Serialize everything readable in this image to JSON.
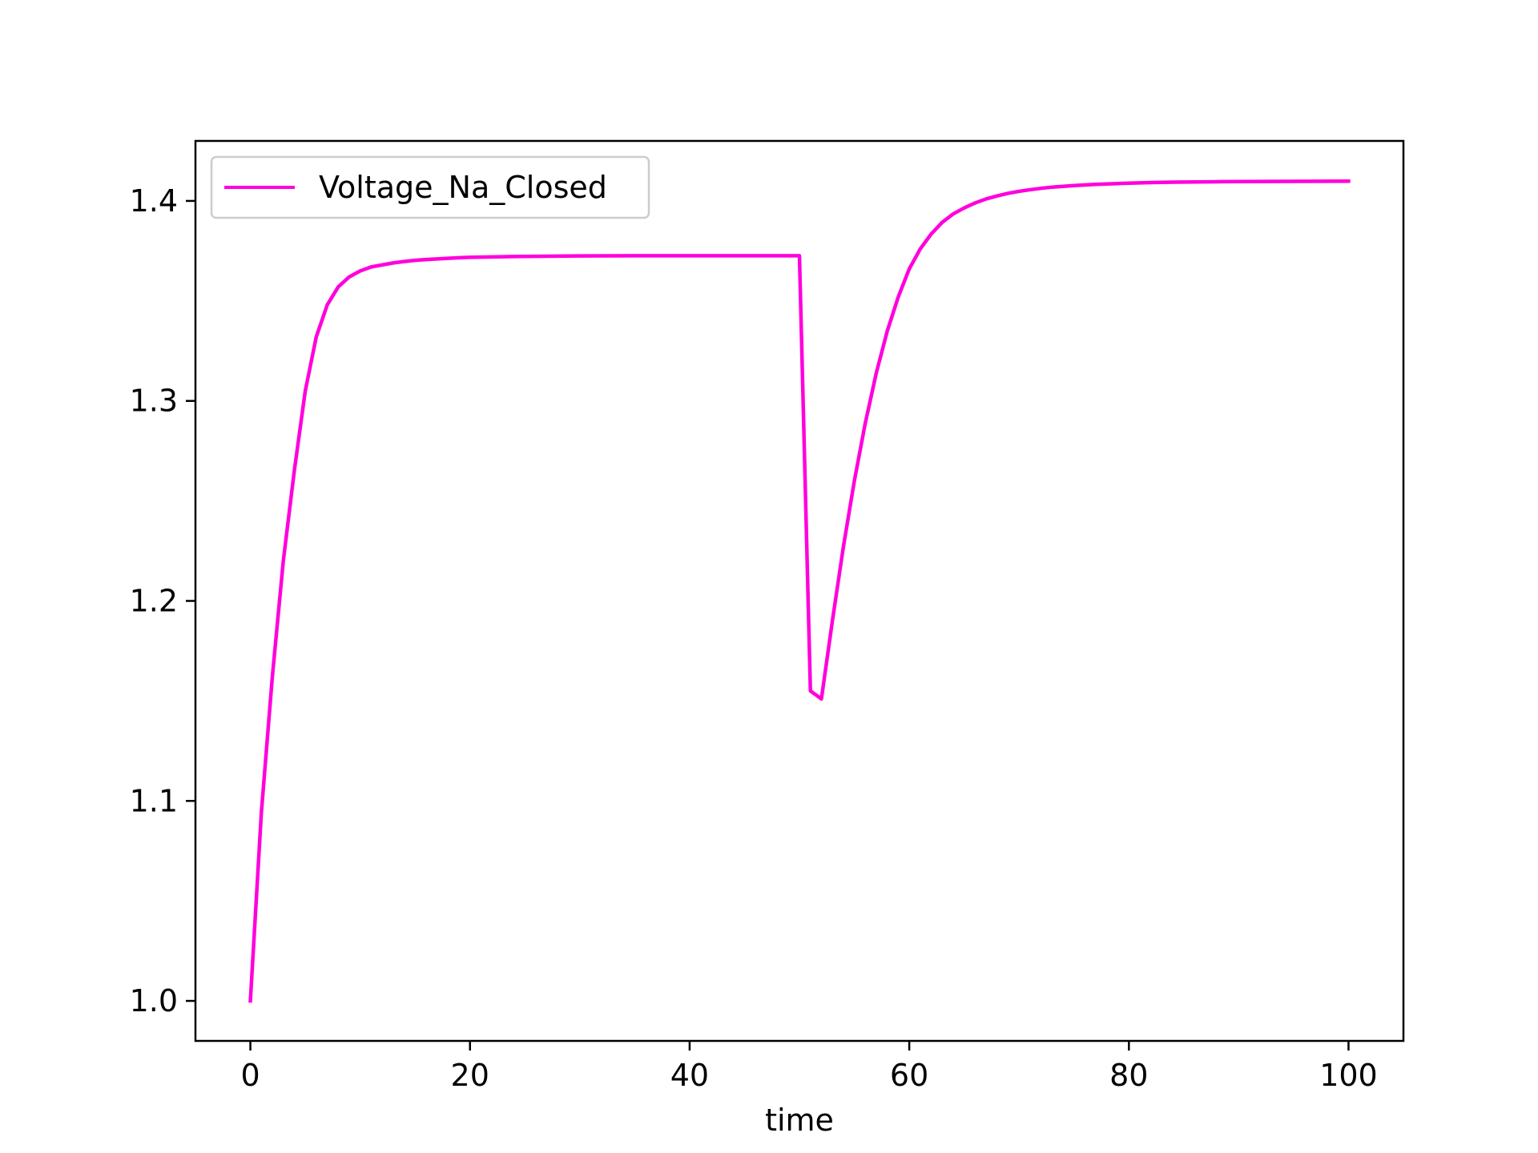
{
  "chart_data": {
    "type": "line",
    "title": "",
    "xlabel": "time",
    "ylabel": "",
    "xlim": [
      -5,
      105
    ],
    "ylim": [
      0.98,
      1.43
    ],
    "xticks": [
      0,
      20,
      40,
      60,
      80,
      100
    ],
    "xtick_labels": [
      "0",
      "20",
      "40",
      "60",
      "80",
      "100"
    ],
    "yticks": [
      1.0,
      1.1,
      1.2,
      1.3,
      1.4
    ],
    "ytick_labels": [
      "1.0",
      "1.1",
      "1.2",
      "1.3",
      "1.4"
    ],
    "grid": false,
    "legend_position": "top-left",
    "series": [
      {
        "name": "Voltage_Na_Closed",
        "color": "#ff00dd",
        "x": [
          0,
          1,
          2,
          3,
          4,
          5,
          6,
          7,
          8,
          9,
          10,
          11,
          12,
          13,
          14,
          15,
          16,
          17,
          18,
          19,
          20,
          22,
          24,
          26,
          28,
          30,
          35,
          40,
          45,
          50,
          51,
          52,
          53,
          54,
          55,
          56,
          57,
          58,
          59,
          60,
          61,
          62,
          63,
          64,
          65,
          66,
          67,
          68,
          69,
          70,
          71,
          72,
          73,
          74,
          75,
          76,
          77,
          78,
          79,
          80,
          82,
          84,
          86,
          88,
          90,
          95,
          100
        ],
        "y": [
          1.0,
          1.094,
          1.162,
          1.22,
          1.265,
          1.305,
          1.332,
          1.348,
          1.357,
          1.362,
          1.365,
          1.367,
          1.368,
          1.369,
          1.3697,
          1.3703,
          1.3707,
          1.371,
          1.3713,
          1.3716,
          1.3718,
          1.372,
          1.3722,
          1.3723,
          1.3724,
          1.3725,
          1.3726,
          1.3726,
          1.3726,
          1.3726,
          1.155,
          1.151,
          1.19,
          1.227,
          1.26,
          1.289,
          1.314,
          1.335,
          1.352,
          1.366,
          1.376,
          1.3835,
          1.3893,
          1.3935,
          1.3965,
          1.399,
          1.401,
          1.4025,
          1.4038,
          1.4048,
          1.4056,
          1.4063,
          1.4069,
          1.4073,
          1.4077,
          1.408,
          1.4083,
          1.4085,
          1.4087,
          1.4089,
          1.4092,
          1.4094,
          1.4095,
          1.4096,
          1.4097,
          1.4098,
          1.4099
        ]
      }
    ]
  }
}
